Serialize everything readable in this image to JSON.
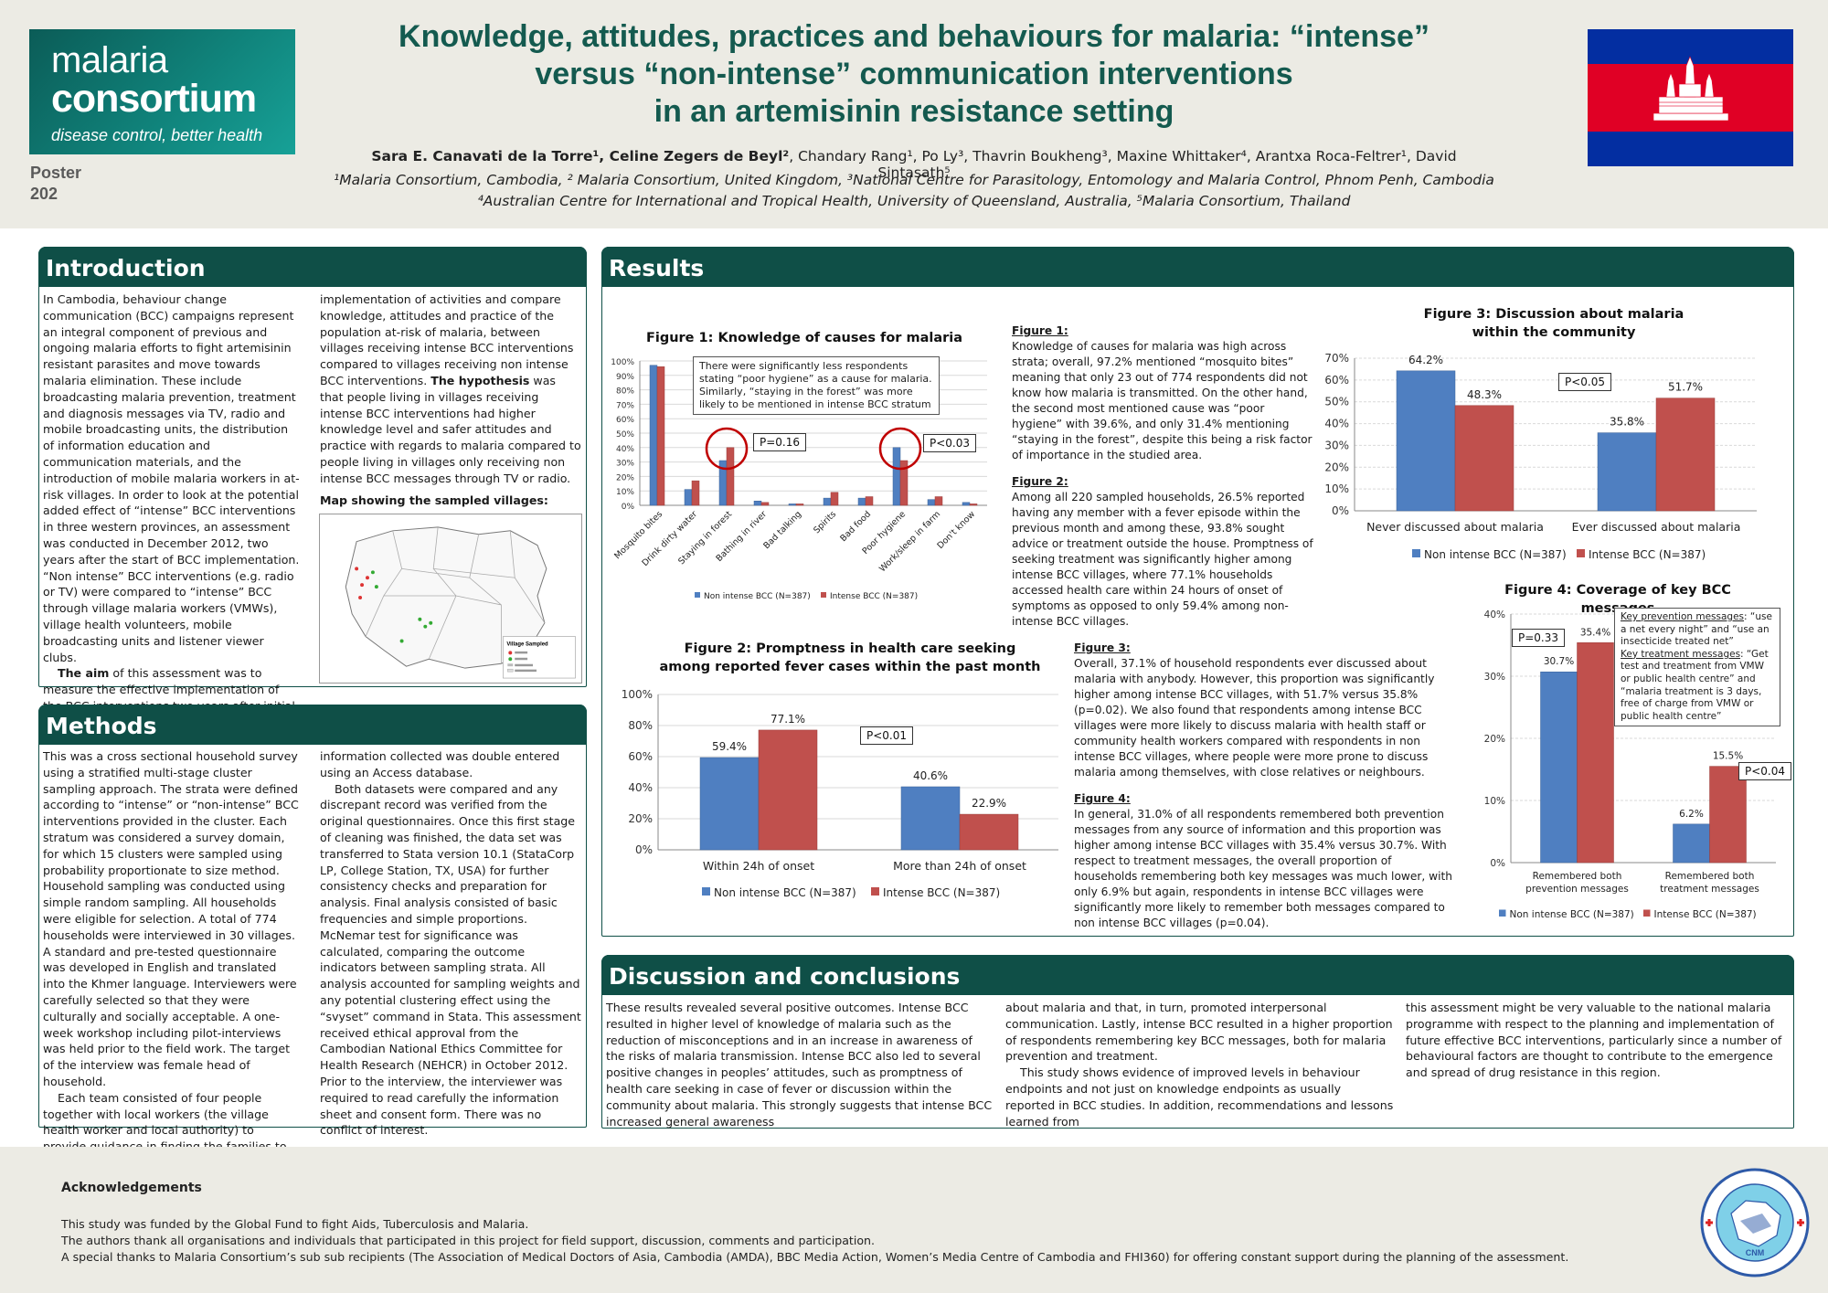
{
  "header": {
    "logo_line1": "malaria",
    "logo_line2": "consortium",
    "logo_tagline": "disease control, better health",
    "poster_label": "Poster",
    "poster_number": "202",
    "title_line1": "Knowledge, attitudes, practices and behaviours for malaria: “intense”",
    "title_line2": "versus “non-intense” communication interventions",
    "title_line3": "in an artemisinin resistance setting",
    "authors_bold": "Sara E. Canavati de la Torre¹, Celine Zegers de Beyl²",
    "authors_rest": ",  Chandary Rang¹, Po Ly³, Thavrin Boukheng³, Maxine Whittaker⁴, Arantxa Roca-Feltrer¹, David Sintasath⁵",
    "affil_line1": "¹Malaria Consortium, Cambodia, ² Malaria Consortium, United Kingdom, ³National Centre for Parasitology, Entomology and Malaria Control, Phnom Penh, Cambodia",
    "affil_line2": "⁴Australian Centre for International and Tropical Health, University of Queensland, Australia, ⁵Malaria Consortium, Thailand"
  },
  "introduction": {
    "heading": "Introduction",
    "col1": "In Cambodia, behaviour change communication (BCC) campaigns represent an integral component of previous and ongoing malaria efforts to fight artemisinin resistant parasites and move towards malaria elimination. These include broadcasting malaria prevention, treatment and diagnosis messages via TV, radio and mobile broadcasting units, the distribution of information education and communication materials, and the introduction of mobile malaria workers in at-risk villages. In order to look at the potential added effect of “intense” BCC interventions in three western provinces, an assessment was conducted in December 2012, two years after the start of BCC implementation. “Non intense” BCC interventions (e.g. radio or TV) were compared to “intense” BCC through village malaria workers (VMWs), village health volunteers, mobile broadcasting units and listener viewer clubs.",
    "aim_bold": "The aim",
    "aim_rest": " of this assessment was to measure the effective implementation of the BCC interventions two years after initial",
    "col2_a": "implementation of activities and compare knowledge, attitudes and practice of the population at-risk of malaria, between villages receiving intense BCC interventions compared to villages receiving non intense BCC interventions. ",
    "hyp_bold": "The hypothesis",
    "col2_b": " was that people living in villages receiving intense BCC interventions had higher knowledge level and safer attitudes and practice with regards to malaria compared to people living in villages only receiving non intense BCC messages through TV or radio.",
    "map_label": "Map showing the sampled villages:",
    "map_legend_title": "Village Sampled"
  },
  "methods": {
    "heading": "Methods",
    "col1_a": "This was a cross sectional household survey using a stratified multi-stage cluster sampling approach. The strata were defined according to “intense” or “non-intense” BCC interventions provided in the cluster. Each stratum was considered a survey domain, for which 15 clusters were sampled using probability proportionate to size method. Household sampling was conducted using simple random sampling. All households were eligible for selection. A total of 774 households were interviewed in 30 villages. A standard and pre-tested questionnaire was developed in English and translated into the Khmer language. Interviewers were carefully selected so that they were culturally and socially acceptable. A one-week workshop including pilot-interviews was held prior to the field work. The target of the interview was female head of household.",
    "col1_b": "Each team consisted of four people together with local workers (the village health worker and local authority) to provide guidance in finding the families to be interviewed. All",
    "col2_a": "information collected was double entered using an Access database.",
    "col2_b": "Both datasets were compared and any discrepant record was verified from the original questionnaires. Once this first stage of cleaning was finished, the data set was transferred to Stata version 10.1 (StataCorp LP, College Station, TX, USA) for further consistency checks and preparation for analysis. Final analysis consisted of basic frequencies and simple proportions. McNemar test for significance was calculated, comparing the outcome indicators between sampling strata. All analysis accounted for sampling weights and any potential clustering effect using the “svyset” command in Stata. This assessment received ethical approval from the Cambodian National Ethics Committee for Health Research (NEHCR) in October 2012. Prior to the interview, the interviewer was required to read carefully the information sheet and consent form. There was no conflict of interest."
  },
  "results": {
    "heading": "Results",
    "fig1_text_title": "Figure 1:",
    "fig1_text": "Knowledge of causes for malaria was high across strata; overall, 97.2% mentioned “mosquito bites” meaning that only 23 out of 774 respondents did not know how malaria is transmitted. On the other hand, the second most mentioned cause was “poor hygiene” with 39.6%, and only 31.4% mentioning “staying in the forest”, despite this being a risk factor of importance in the studied area.",
    "fig2_text_title": "Figure 2:",
    "fig2_text": "Among all 220 sampled households, 26.5% reported having any member with a fever episode within the previous month and among these, 93.8% sought advice or treatment outside the house. Promptness of seeking treatment was significantly higher among intense BCC villages, where 77.1% households accessed health care within 24 hours of onset of symptoms as opposed to only 59.4% among non-intense BCC villages.",
    "fig3_text_title": "Figure 3:",
    "fig3_text": "Overall, 37.1% of household respondents ever discussed about malaria with anybody. However,  this  proportion was significantly higher among intense BCC villages, with 51.7% versus 35.8% (p=0.02). We also found that respondents among intense BCC villages were more likely to discuss malaria with health staff or community health workers compared with respondents in non intense BCC villages, where people were more prone to discuss malaria among themselves, with close relatives or neighbours.",
    "fig4_text_title": "Figure 4:",
    "fig4_text": "In general, 31.0% of all respondents remembered both prevention messages from any source of information and this proportion was higher among intense BCC villages with 35.4% versus 30.7%. With respect to treatment messages, the overall proportion of households remembering both key messages was much lower, with only 6.9% but again, respondents in intense BCC villages were significantly more  likely to remember both messages compared to non intense BCC villages (p=0.04).",
    "fig1_callout": "There were significantly less respondents stating “poor hygiene” as a cause for malaria. Similarly, “staying in the forest” was more likely to be mentioned in intense BCC stratum",
    "fig1_p1": "P=0.16",
    "fig1_p2": "P<0.03",
    "fig2_p": "P<0.01",
    "fig3_p": "P<0.05",
    "fig4_p1": "P=0.33",
    "fig4_p2": "P<0.04",
    "fig4_callout_h1": "Key prevention messages",
    "fig4_callout_t1": ": “use a net every night” and “use an insecticide treated net”",
    "fig4_callout_h2": "Key treatment messages",
    "fig4_callout_t2": ": “Get test and treatment from VMW or public health centre” and “malaria treatment is 3 days, free of charge from VMW or public health centre”"
  },
  "discussion": {
    "heading": "Discussion and conclusions",
    "col1": "These results revealed several positive outcomes. Intense BCC resulted in higher level of knowledge of malaria such as the reduction of misconceptions and in an increase in awareness of the risks of malaria transmission. Intense BCC also led to several positive changes in peoples’ attitudes, such as promptness of health care seeking in case of fever or discussion within the community about malaria. This strongly suggests that intense BCC increased general awareness",
    "col2_a": "about malaria and that, in turn, promoted interpersonal communication. Lastly, intense BCC resulted in a higher proportion of respondents remembering key BCC messages, both for malaria prevention and treatment.",
    "col2_b": "This study shows evidence of improved levels in behaviour endpoints and not just on knowledge endpoints as usually reported in BCC studies. In addition, recommendations and lessons learned from",
    "col3": "this assessment might be very valuable to the national malaria programme with respect to the planning and implementation of future effective BCC interventions, particularly since a number of behavioural factors are thought to contribute to the emergence and spread of drug resistance in this region."
  },
  "acknowledgements": {
    "title": "Acknowledgements",
    "line1": "This study was funded by the Global Fund to fight Aids, Tuberculosis and Malaria.",
    "line2": "The authors thank all organisations and individuals that participated in this project for field support, discussion, comments and participation.",
    "line3": "A special thanks to Malaria Consortium’s sub sub recipients (The Association of Medical Doctors of Asia, Cambodia (AMDA), BBC Media Action, Women’s Media Centre of Cambodia and FHI360) for offering constant support during the planning of the assessment.",
    "cnm_label": "CNM"
  },
  "colors": {
    "teal": "#0f4f47",
    "blue": "#4f7fc1",
    "red": "#c0504d",
    "title": "#145a4f"
  },
  "chart_data": [
    {
      "type": "bar",
      "title": "Figure 1: Knowledge of causes for malaria",
      "categories": [
        "Mosquito bites",
        "Drink dirty water",
        "Staying in forest",
        "Bathing in river",
        "Bad talking",
        "Spirits",
        "Bad food",
        "Poor hygiene",
        "Work/sleep in farm",
        "Don't know"
      ],
      "series": [
        {
          "name": "Non intense BCC (N=387)",
          "values": [
            97,
            11,
            31,
            3,
            1,
            5,
            5,
            40,
            4,
            2
          ]
        },
        {
          "name": "Intense BCC (N=387)",
          "values": [
            96,
            17,
            40,
            2,
            1,
            9,
            6,
            31,
            6,
            1
          ]
        }
      ],
      "yticks": [
        "0%",
        "10%",
        "20%",
        "30%",
        "40%",
        "50%",
        "60%",
        "70%",
        "80%",
        "90%",
        "100%"
      ],
      "ylim": [
        0,
        100
      ]
    },
    {
      "type": "bar",
      "title": "Figure 2: Promptness in health care seeking among reported fever cases within the past month",
      "categories": [
        "Within 24h of onset",
        "More than 24h of onset"
      ],
      "series": [
        {
          "name": "Non intense BCC (N=387)",
          "values": [
            59.4,
            40.6
          ],
          "labels": [
            "59.4%",
            "40.6%"
          ]
        },
        {
          "name": "Intense BCC (N=387)",
          "values": [
            77.1,
            22.9
          ],
          "labels": [
            "77.1%",
            "22.9%"
          ]
        }
      ],
      "yticks": [
        "0%",
        "20%",
        "40%",
        "60%",
        "80%",
        "100%"
      ],
      "ylim": [
        0,
        100
      ]
    },
    {
      "type": "bar",
      "title": "Figure 3: Discussion about malaria within the community",
      "categories": [
        "Never discussed about malaria",
        "Ever discussed about malaria"
      ],
      "series": [
        {
          "name": "Non intense BCC (N=387)",
          "values": [
            64.2,
            35.8
          ],
          "labels": [
            "64.2%",
            "35.8%"
          ]
        },
        {
          "name": "Intense BCC (N=387)",
          "values": [
            48.3,
            51.7
          ],
          "labels": [
            "48.3%",
            "51.7%"
          ]
        }
      ],
      "yticks": [
        "0%",
        "10%",
        "20%",
        "30%",
        "40%",
        "50%",
        "60%",
        "70%"
      ],
      "ylim": [
        0,
        70
      ]
    },
    {
      "type": "bar",
      "title": "Figure 4: Coverage of key BCC messages",
      "categories": [
        "Remembered both prevention messages",
        "Remembered both treatment messages"
      ],
      "series": [
        {
          "name": "Non intense BCC (N=387)",
          "values": [
            30.7,
            6.2
          ],
          "labels": [
            "30.7%",
            "6.2%"
          ]
        },
        {
          "name": "Intense BCC (N=387)",
          "values": [
            35.4,
            15.5
          ],
          "labels": [
            "35.4%",
            "15.5%"
          ]
        }
      ],
      "yticks": [
        "0%",
        "10%",
        "20%",
        "30%",
        "40%"
      ],
      "ylim": [
        0,
        40
      ]
    }
  ]
}
